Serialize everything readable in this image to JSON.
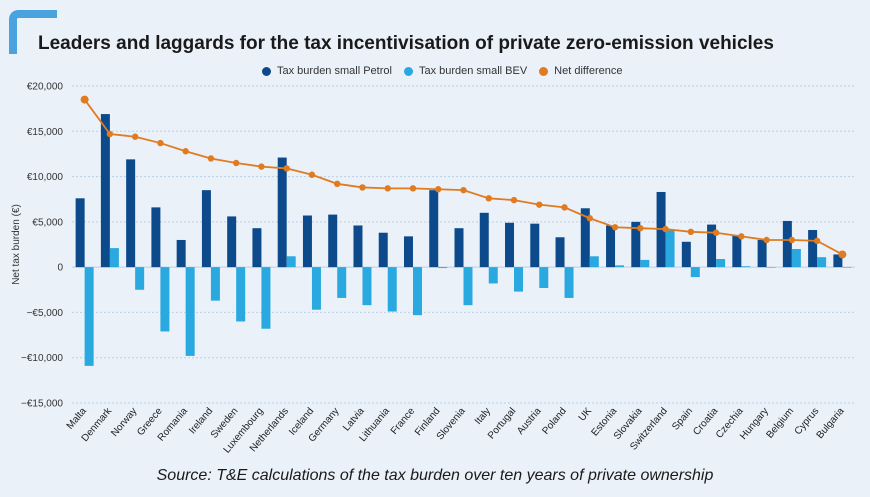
{
  "header": {
    "title": "Leaders and laggards for the tax incentivisation of private zero-emission vehicles"
  },
  "footer": {
    "source": "Source: T&E calculations of the tax burden over ten years of private ownership"
  },
  "colors": {
    "petrol": "#0d4a8c",
    "bev": "#2aa8e0",
    "net": "#e07b1f",
    "accent": "#4aa3df",
    "grid": "#b9cfe4"
  },
  "chart_data": {
    "type": "bar",
    "title": "Leaders and laggards for the tax incentivisation of private zero-emission vehicles",
    "xlabel": "",
    "ylabel": "Net tax burden (€)",
    "ylim": [
      -15000,
      20000
    ],
    "yticks": [
      20000,
      15000,
      10000,
      5000,
      0,
      -5000,
      -10000,
      -15000
    ],
    "ytick_labels": [
      "€20,000",
      "€15,000",
      "€10,000",
      "€5,000",
      "0",
      "−€5,000",
      "−€10,000",
      "−€15,000"
    ],
    "grid": true,
    "legend_position": "top-center",
    "categories": [
      "Malta",
      "Denmark",
      "Norway",
      "Greece",
      "Romania",
      "Ireland",
      "Sweden",
      "Luxembourg",
      "Netherlands",
      "Iceland",
      "Germany",
      "Latvia",
      "Lithuania",
      "France",
      "Finland",
      "Slovenia",
      "Italy",
      "Portugal",
      "Austria",
      "Poland",
      "UK",
      "Estonia",
      "Slovakia",
      "Switzerland",
      "Spain",
      "Croatia",
      "Czechia",
      "Hungary",
      "Belgium",
      "Cyprus",
      "Bulgaria"
    ],
    "series": [
      {
        "name": "Tax burden small Petrol",
        "kind": "bar",
        "values": [
          7600,
          16900,
          11900,
          6600,
          3000,
          8500,
          5600,
          4300,
          12100,
          5700,
          5800,
          4600,
          3800,
          3400,
          8500,
          4300,
          6000,
          4900,
          4800,
          3300,
          6500,
          4600,
          5000,
          8300,
          2800,
          4700,
          3500,
          3000,
          5100,
          4100,
          1400
        ]
      },
      {
        "name": "Tax burden small BEV",
        "kind": "bar",
        "values": [
          -10900,
          2100,
          -2500,
          -7100,
          -9800,
          -3700,
          -6000,
          -6800,
          1200,
          -4700,
          -3400,
          -4200,
          -4900,
          -5300,
          -100,
          -4200,
          -1800,
          -2700,
          -2300,
          -3400,
          1200,
          200,
          800,
          4100,
          -1100,
          900,
          100,
          0,
          2000,
          1100,
          0
        ]
      },
      {
        "name": "Net difference",
        "kind": "line",
        "values": [
          18500,
          14700,
          14400,
          13700,
          12800,
          12000,
          11500,
          11100,
          10900,
          10200,
          9200,
          8800,
          8700,
          8700,
          8600,
          8500,
          7600,
          7400,
          6900,
          6600,
          5400,
          4400,
          4300,
          4200,
          3900,
          3800,
          3400,
          3000,
          3000,
          2900,
          1400
        ]
      }
    ]
  }
}
